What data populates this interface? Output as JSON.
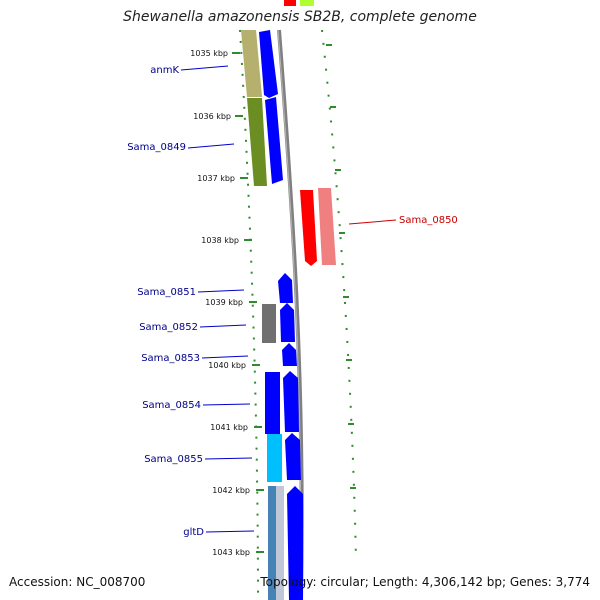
{
  "title": "Shewanella amazonensis SB2B, complete genome",
  "footer": {
    "accession": "Accession: NC_008700",
    "summary": "Topology: circular; Length: 4,306,142 bp; Genes: 3,774"
  },
  "colors": {
    "forward_gene": "#0000ff",
    "reverse_gene": "#ff0000",
    "tick": "#2e8b2e",
    "backbone": "#808080",
    "label_blue": "#00008b",
    "label_red": "#cc0000"
  },
  "ticks": [
    {
      "label": "1035 kbp"
    },
    {
      "label": "1036 kbp"
    },
    {
      "label": "1037 kbp"
    },
    {
      "label": "1038 kbp"
    },
    {
      "label": "1039 kbp"
    },
    {
      "label": "1040 kbp"
    },
    {
      "label": "1041 kbp"
    },
    {
      "label": "1042 kbp"
    },
    {
      "label": "1043 kbp"
    }
  ],
  "gene_labels": [
    {
      "name": "anmK",
      "color": "#00008b"
    },
    {
      "name": "Sama_0849",
      "color": "#00008b"
    },
    {
      "name": "Sama_0850",
      "color": "#cc0000"
    },
    {
      "name": "Sama_0851",
      "color": "#00008b"
    },
    {
      "name": "Sama_0852",
      "color": "#00008b"
    },
    {
      "name": "Sama_0853",
      "color": "#00008b"
    },
    {
      "name": "Sama_0854",
      "color": "#00008b"
    },
    {
      "name": "Sama_0855",
      "color": "#00008b"
    },
    {
      "name": "gltD",
      "color": "#00008b"
    }
  ]
}
